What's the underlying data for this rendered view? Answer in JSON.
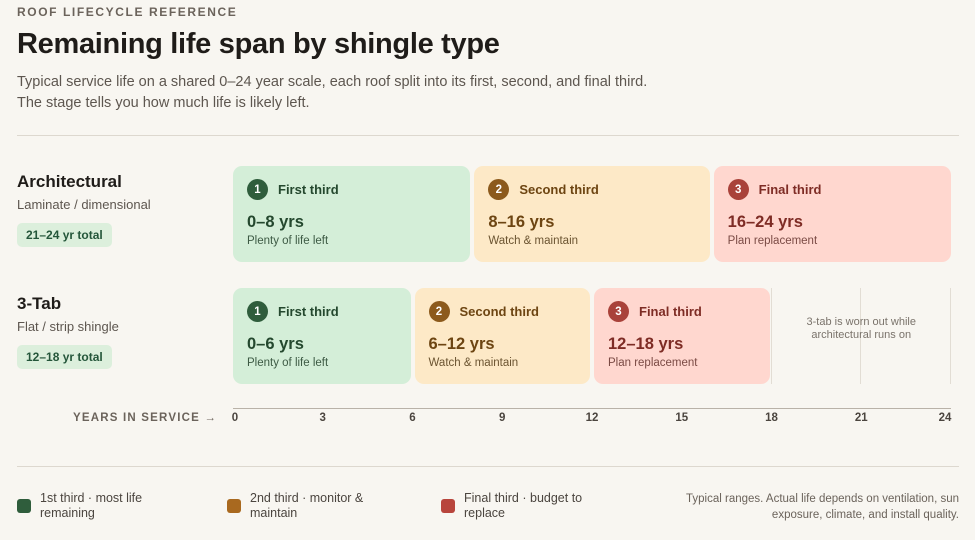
{
  "header": {
    "eyebrow": "ROOF LIFECYCLE REFERENCE",
    "title": "Remaining life span by shingle type",
    "subtitle": "Typical service life on a shared 0–24 year scale, each roof split into its first, second, and final third. The stage tells you how much life is likely left."
  },
  "chart_data": {
    "type": "bar",
    "orientation": "horizontal-stacked",
    "xlim": [
      0,
      24
    ],
    "xlabel": "YEARS IN SERVICE →",
    "xticks": [
      0,
      3,
      6,
      9,
      12,
      15,
      18,
      21,
      24
    ],
    "rows": [
      {
        "name": "Architectural",
        "desc": "Laminate / dimensional",
        "total": "21–24 yr total",
        "segments": [
          {
            "start": 0,
            "end": 8,
            "stage": 1,
            "num": "1",
            "label": "First third",
            "range": "0–8 yrs",
            "note": "Plenty of life left"
          },
          {
            "start": 8,
            "end": 16,
            "stage": 2,
            "num": "2",
            "label": "Second third",
            "range": "8–16 yrs",
            "note": "Watch & maintain"
          },
          {
            "start": 16,
            "end": 24,
            "stage": 3,
            "num": "3",
            "label": "Final third",
            "range": "16–24 yrs",
            "note": "Plan replacement"
          }
        ]
      },
      {
        "name": "3-Tab",
        "desc": "Flat / strip shingle",
        "total": "12–18 yr total",
        "segments": [
          {
            "start": 0,
            "end": 6,
            "stage": 1,
            "num": "1",
            "label": "First third",
            "range": "0–6 yrs",
            "note": "Plenty of life left"
          },
          {
            "start": 6,
            "end": 12,
            "stage": 2,
            "num": "2",
            "label": "Second third",
            "range": "6–12 yrs",
            "note": "Watch & maintain"
          },
          {
            "start": 12,
            "end": 18,
            "stage": 3,
            "num": "3",
            "label": "Final third",
            "range": "12–18 yrs",
            "note": "Plan replacement"
          }
        ],
        "empty_note": "3-tab is worn out while architectural runs on"
      }
    ],
    "colors": {
      "stage1": "#2f5d3c",
      "stage2": "#8c5a1c",
      "stage3": "#a9423a"
    }
  },
  "legend": [
    {
      "text": "1st third · most life remaining",
      "color": "#2f5d3c"
    },
    {
      "text": "2nd third · monitor & maintain",
      "color": "#a9691f"
    },
    {
      "text": "Final third · budget to replace",
      "color": "#b8453c"
    }
  ],
  "footnote": "Typical ranges. Actual life depends on ventilation, sun exposure, climate, and install quality."
}
